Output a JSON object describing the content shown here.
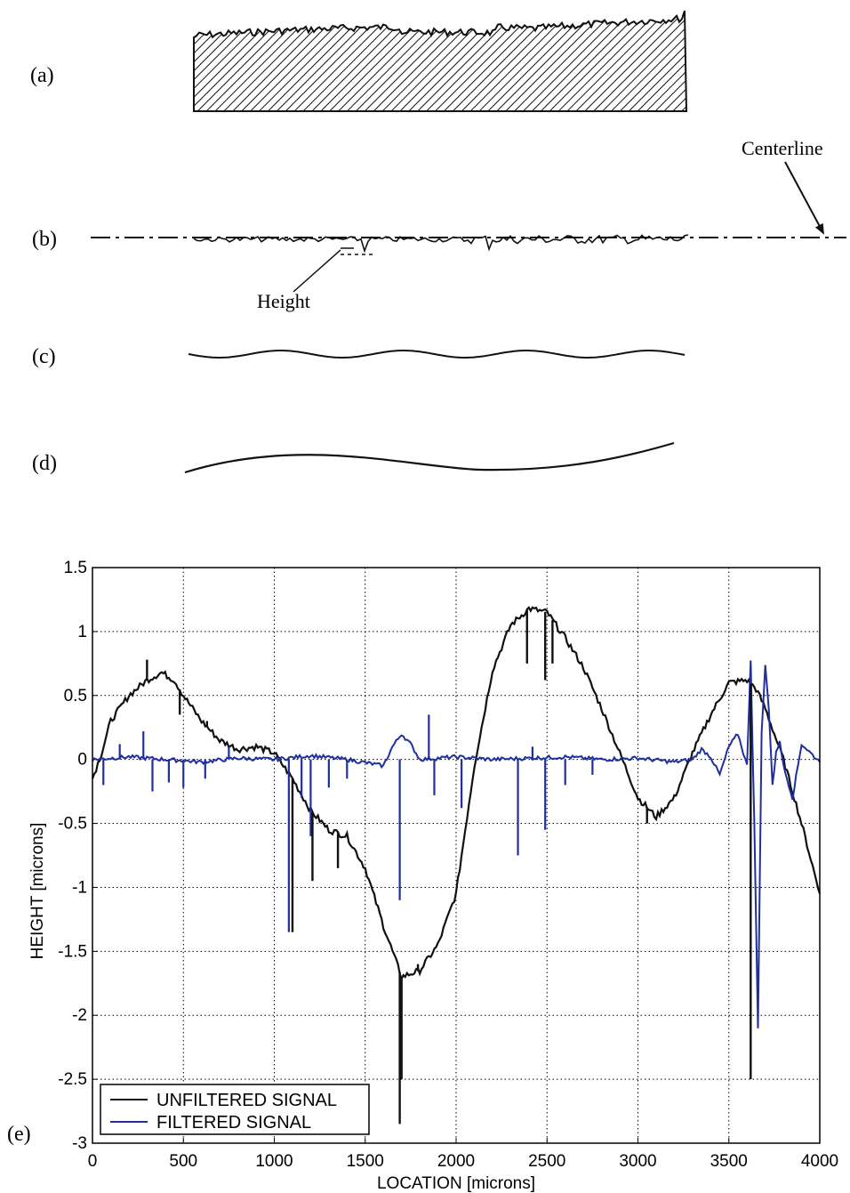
{
  "panel_labels": {
    "a": "(a)",
    "b": "(b)",
    "c": "(c)",
    "d": "(d)",
    "e": "(e)"
  },
  "annotations": {
    "centerline": "Centerline",
    "height": "Height"
  },
  "colors": {
    "unfiltered": "#111111",
    "filtered": "#1f2f9e",
    "axes": "#000000",
    "grid": "#000000"
  },
  "chart_data": {
    "type": "line",
    "xlabel": "LOCATION [microns]",
    "ylabel": "HEIGHT [microns]",
    "xlim": [
      0,
      4000
    ],
    "ylim": [
      -3,
      1.5
    ],
    "xticks": [
      0,
      500,
      1000,
      1500,
      2000,
      2500,
      3000,
      3500,
      4000
    ],
    "yticks": [
      -3,
      -2.5,
      -2,
      -1.5,
      -1,
      -0.5,
      0,
      0.5,
      1,
      1.5
    ],
    "grid": true,
    "legend_position": "bottom-left",
    "series": [
      {
        "name": "UNFILTERED SIGNAL",
        "color": "#111111",
        "x": [
          0,
          50,
          100,
          200,
          300,
          380,
          450,
          500,
          600,
          700,
          800,
          900,
          1000,
          1100,
          1200,
          1300,
          1400,
          1500,
          1600,
          1700,
          1800,
          1900,
          2000,
          2100,
          2200,
          2300,
          2400,
          2500,
          2600,
          2700,
          2800,
          2900,
          3000,
          3100,
          3200,
          3300,
          3400,
          3500,
          3600,
          3650,
          3700,
          3750,
          3800,
          3900,
          4000
        ],
        "y": [
          -0.15,
          0.05,
          0.3,
          0.5,
          0.62,
          0.68,
          0.62,
          0.5,
          0.3,
          0.15,
          0.08,
          0.1,
          0.05,
          -0.15,
          -0.4,
          -0.55,
          -0.6,
          -0.85,
          -1.3,
          -1.7,
          -1.65,
          -1.45,
          -1.05,
          -0.05,
          0.7,
          1.05,
          1.18,
          1.15,
          0.95,
          0.72,
          0.4,
          0.05,
          -0.3,
          -0.45,
          -0.3,
          0.05,
          0.35,
          0.6,
          0.62,
          0.55,
          0.4,
          0.2,
          0.0,
          -0.5,
          -1.05
        ]
      },
      {
        "name": "FILTERED SIGNAL",
        "color": "#1f2f9e",
        "x": [
          0,
          200,
          400,
          600,
          800,
          1000,
          1200,
          1400,
          1600,
          1650,
          1700,
          1750,
          1800,
          2000,
          2200,
          2400,
          2600,
          2800,
          3000,
          3200,
          3300,
          3350,
          3400,
          3450,
          3500,
          3550,
          3600,
          3620,
          3640,
          3660,
          3680,
          3700,
          3720,
          3740,
          3760,
          3780,
          3800,
          3850,
          3900,
          4000
        ],
        "y": [
          0,
          0.02,
          0,
          -0.02,
          0.01,
          0,
          0.03,
          0,
          -0.05,
          0.1,
          0.2,
          0.12,
          0,
          0.02,
          0,
          0.01,
          0.02,
          0,
          0.01,
          -0.02,
          0,
          0.08,
          0.02,
          -0.12,
          0.1,
          0.2,
          -0.05,
          0.78,
          -0.5,
          -2.1,
          0.2,
          0.73,
          0.4,
          -0.2,
          0.05,
          0.15,
          -0.05,
          -0.3,
          0.12,
          -0.02
        ]
      }
    ],
    "spikes": {
      "filtered": [
        [
          60,
          -0.2
        ],
        [
          150,
          0.12
        ],
        [
          280,
          0.22
        ],
        [
          330,
          -0.25
        ],
        [
          420,
          -0.18
        ],
        [
          500,
          -0.22
        ],
        [
          620,
          -0.15
        ],
        [
          750,
          0.1
        ],
        [
          1080,
          -1.35
        ],
        [
          1150,
          -0.3
        ],
        [
          1200,
          -0.6
        ],
        [
          1300,
          -0.22
        ],
        [
          1400,
          -0.15
        ],
        [
          1690,
          -1.1
        ],
        [
          1850,
          0.35
        ],
        [
          1880,
          -0.28
        ],
        [
          2030,
          -0.38
        ],
        [
          2340,
          -0.75
        ],
        [
          2420,
          0.1
        ],
        [
          2490,
          -0.55
        ],
        [
          2600,
          -0.2
        ],
        [
          2750,
          -0.12
        ]
      ],
      "unfiltered": [
        [
          300,
          0.78
        ],
        [
          480,
          0.35
        ],
        [
          630,
          0.3
        ],
        [
          1100,
          -1.35
        ],
        [
          1210,
          -0.95
        ],
        [
          1350,
          -0.85
        ],
        [
          1690,
          -2.85
        ],
        [
          1700,
          -2.5
        ],
        [
          1790,
          -1.6
        ],
        [
          2390,
          0.75
        ],
        [
          2490,
          0.62
        ],
        [
          2530,
          0.75
        ],
        [
          3620,
          -2.5
        ],
        [
          3050,
          -0.5
        ]
      ]
    }
  }
}
